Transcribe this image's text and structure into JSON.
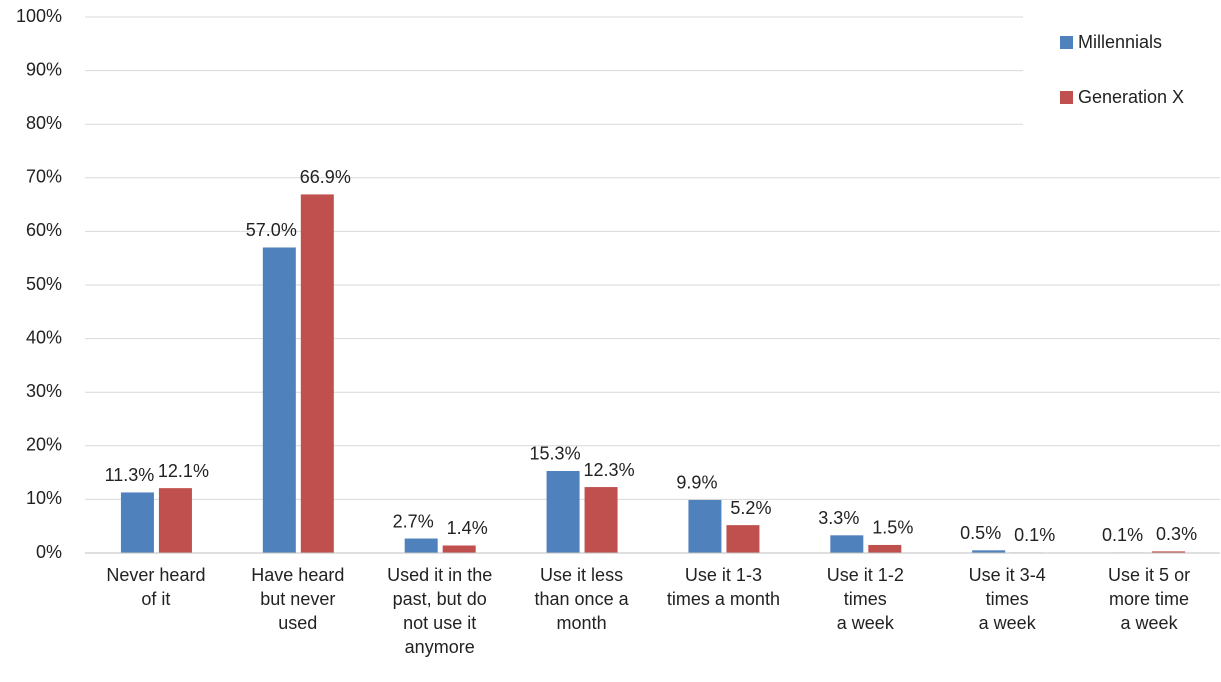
{
  "chart_data": {
    "type": "bar",
    "categories": [
      "Never heard\nof it",
      "Have heard\nbut never\nused",
      "Used it in the\npast, but do\nnot use it\nanymore",
      "Use it less\nthan once a\nmonth",
      "Use it 1-3\ntimes a month",
      "Use it 1-2\ntimes\na week",
      "Use it 3-4\ntimes\na week",
      "Use it 5 or\nmore time\na week"
    ],
    "series": [
      {
        "name": "Millennials",
        "color": "#4f81bd",
        "values": [
          11.3,
          57.0,
          2.7,
          15.3,
          9.9,
          3.3,
          0.5,
          0.1
        ],
        "value_labels": [
          "11.3%",
          "57.0%",
          "2.7%",
          "15.3%",
          "9.9%",
          "3.3%",
          "0.5%",
          "0.1%"
        ]
      },
      {
        "name": "Generation X",
        "color": "#c0504d",
        "values": [
          12.1,
          66.9,
          1.4,
          12.3,
          5.2,
          1.5,
          0.1,
          0.3
        ],
        "value_labels": [
          "12.1%",
          "66.9%",
          "1.4%",
          "12.3%",
          "5.2%",
          "1.5%",
          "0.1%",
          "0.3%"
        ]
      }
    ],
    "ylim": [
      0,
      100
    ],
    "yticks": [
      {
        "value": 0,
        "label": "0%"
      },
      {
        "value": 10,
        "label": "10%"
      },
      {
        "value": 20,
        "label": "20%"
      },
      {
        "value": 30,
        "label": "30%"
      },
      {
        "value": 40,
        "label": "40%"
      },
      {
        "value": 50,
        "label": "50%"
      },
      {
        "value": 60,
        "label": "60%"
      },
      {
        "value": 70,
        "label": "70%"
      },
      {
        "value": 80,
        "label": "80%"
      },
      {
        "value": 90,
        "label": "90%"
      },
      {
        "value": 100,
        "label": "100%"
      }
    ],
    "grid": true,
    "legend": "top-right"
  }
}
